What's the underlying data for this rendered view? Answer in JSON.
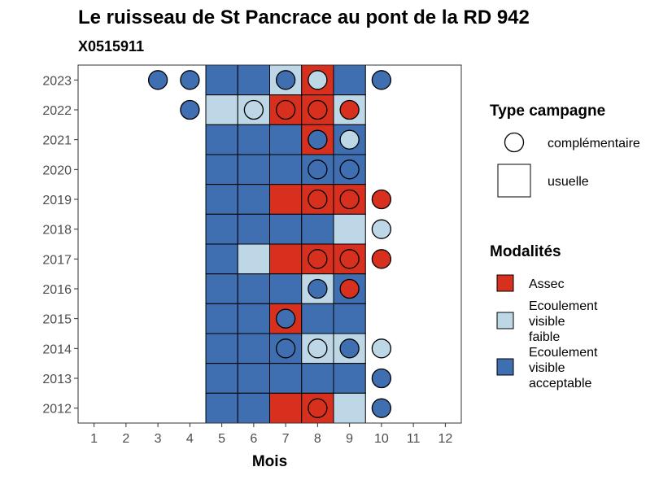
{
  "chart_data": {
    "type": "heatmap",
    "title": "Le ruisseau de St Pancrace au pont de la RD 942",
    "subtitle": "X0515911",
    "xlabel": "Mois",
    "ylabel": "",
    "x_ticks": [
      1,
      2,
      3,
      4,
      5,
      6,
      7,
      8,
      9,
      10,
      11,
      12
    ],
    "y_ticks": [
      2012,
      2013,
      2014,
      2015,
      2016,
      2017,
      2018,
      2019,
      2020,
      2021,
      2022,
      2023
    ],
    "xlim": [
      0.5,
      12.5
    ],
    "ylim": [
      2011.5,
      2023.5
    ],
    "legend_placement": "right",
    "colors": {
      "Assec": "#d7301f",
      "Ecoulement visible faible": "#bdd7e7",
      "Ecoulement visible acceptable": "#3f6fb0"
    },
    "legend_type": {
      "title": "Type campagne",
      "items": [
        {
          "label": "complémentaire",
          "shape": "circle"
        },
        {
          "label": "usuelle",
          "shape": "square"
        }
      ]
    },
    "legend_modalites": {
      "title": "Modalités",
      "items": [
        {
          "key": "Assec",
          "lines": [
            "Assec"
          ]
        },
        {
          "key": "Ecoulement visible faible",
          "lines": [
            "Ecoulement",
            "visible",
            "faible"
          ]
        },
        {
          "key": "Ecoulement visible acceptable",
          "lines": [
            "Ecoulement",
            "visible",
            "acceptable"
          ]
        }
      ]
    },
    "usuelle": [
      {
        "year": 2023,
        "month": 5,
        "modalite": "Ecoulement visible acceptable"
      },
      {
        "year": 2023,
        "month": 6,
        "modalite": "Ecoulement visible acceptable"
      },
      {
        "year": 2023,
        "month": 7,
        "modalite": "Ecoulement visible faible"
      },
      {
        "year": 2023,
        "month": 8,
        "modalite": "Assec"
      },
      {
        "year": 2023,
        "month": 9,
        "modalite": "Ecoulement visible acceptable"
      },
      {
        "year": 2022,
        "month": 5,
        "modalite": "Ecoulement visible faible"
      },
      {
        "year": 2022,
        "month": 6,
        "modalite": "Ecoulement visible faible"
      },
      {
        "year": 2022,
        "month": 7,
        "modalite": "Assec"
      },
      {
        "year": 2022,
        "month": 8,
        "modalite": "Assec"
      },
      {
        "year": 2022,
        "month": 9,
        "modalite": "Ecoulement visible faible"
      },
      {
        "year": 2021,
        "month": 5,
        "modalite": "Ecoulement visible acceptable"
      },
      {
        "year": 2021,
        "month": 6,
        "modalite": "Ecoulement visible acceptable"
      },
      {
        "year": 2021,
        "month": 7,
        "modalite": "Ecoulement visible acceptable"
      },
      {
        "year": 2021,
        "month": 8,
        "modalite": "Assec"
      },
      {
        "year": 2021,
        "month": 9,
        "modalite": "Ecoulement visible acceptable"
      },
      {
        "year": 2020,
        "month": 5,
        "modalite": "Ecoulement visible acceptable"
      },
      {
        "year": 2020,
        "month": 6,
        "modalite": "Ecoulement visible acceptable"
      },
      {
        "year": 2020,
        "month": 7,
        "modalite": "Ecoulement visible acceptable"
      },
      {
        "year": 2020,
        "month": 8,
        "modalite": "Ecoulement visible acceptable"
      },
      {
        "year": 2020,
        "month": 9,
        "modalite": "Ecoulement visible acceptable"
      },
      {
        "year": 2019,
        "month": 5,
        "modalite": "Ecoulement visible acceptable"
      },
      {
        "year": 2019,
        "month": 6,
        "modalite": "Ecoulement visible acceptable"
      },
      {
        "year": 2019,
        "month": 7,
        "modalite": "Assec"
      },
      {
        "year": 2019,
        "month": 8,
        "modalite": "Assec"
      },
      {
        "year": 2019,
        "month": 9,
        "modalite": "Assec"
      },
      {
        "year": 2018,
        "month": 5,
        "modalite": "Ecoulement visible acceptable"
      },
      {
        "year": 2018,
        "month": 6,
        "modalite": "Ecoulement visible acceptable"
      },
      {
        "year": 2018,
        "month": 7,
        "modalite": "Ecoulement visible acceptable"
      },
      {
        "year": 2018,
        "month": 8,
        "modalite": "Ecoulement visible acceptable"
      },
      {
        "year": 2018,
        "month": 9,
        "modalite": "Ecoulement visible faible"
      },
      {
        "year": 2017,
        "month": 5,
        "modalite": "Ecoulement visible acceptable"
      },
      {
        "year": 2017,
        "month": 6,
        "modalite": "Ecoulement visible faible"
      },
      {
        "year": 2017,
        "month": 7,
        "modalite": "Assec"
      },
      {
        "year": 2017,
        "month": 8,
        "modalite": "Assec"
      },
      {
        "year": 2017,
        "month": 9,
        "modalite": "Assec"
      },
      {
        "year": 2016,
        "month": 5,
        "modalite": "Ecoulement visible acceptable"
      },
      {
        "year": 2016,
        "month": 6,
        "modalite": "Ecoulement visible acceptable"
      },
      {
        "year": 2016,
        "month": 7,
        "modalite": "Ecoulement visible acceptable"
      },
      {
        "year": 2016,
        "month": 8,
        "modalite": "Ecoulement visible faible"
      },
      {
        "year": 2016,
        "month": 9,
        "modalite": "Ecoulement visible acceptable"
      },
      {
        "year": 2015,
        "month": 5,
        "modalite": "Ecoulement visible acceptable"
      },
      {
        "year": 2015,
        "month": 6,
        "modalite": "Ecoulement visible acceptable"
      },
      {
        "year": 2015,
        "month": 7,
        "modalite": "Assec"
      },
      {
        "year": 2015,
        "month": 8,
        "modalite": "Ecoulement visible acceptable"
      },
      {
        "year": 2015,
        "month": 9,
        "modalite": "Ecoulement visible acceptable"
      },
      {
        "year": 2014,
        "month": 5,
        "modalite": "Ecoulement visible acceptable"
      },
      {
        "year": 2014,
        "month": 6,
        "modalite": "Ecoulement visible acceptable"
      },
      {
        "year": 2014,
        "month": 7,
        "modalite": "Ecoulement visible acceptable"
      },
      {
        "year": 2014,
        "month": 8,
        "modalite": "Ecoulement visible faible"
      },
      {
        "year": 2014,
        "month": 9,
        "modalite": "Ecoulement visible faible"
      },
      {
        "year": 2013,
        "month": 5,
        "modalite": "Ecoulement visible acceptable"
      },
      {
        "year": 2013,
        "month": 6,
        "modalite": "Ecoulement visible acceptable"
      },
      {
        "year": 2013,
        "month": 7,
        "modalite": "Ecoulement visible acceptable"
      },
      {
        "year": 2013,
        "month": 8,
        "modalite": "Ecoulement visible acceptable"
      },
      {
        "year": 2013,
        "month": 9,
        "modalite": "Ecoulement visible acceptable"
      },
      {
        "year": 2012,
        "month": 5,
        "modalite": "Ecoulement visible acceptable"
      },
      {
        "year": 2012,
        "month": 6,
        "modalite": "Ecoulement visible acceptable"
      },
      {
        "year": 2012,
        "month": 7,
        "modalite": "Assec"
      },
      {
        "year": 2012,
        "month": 8,
        "modalite": "Assec"
      },
      {
        "year": 2012,
        "month": 9,
        "modalite": "Ecoulement visible faible"
      }
    ],
    "complementaire": [
      {
        "year": 2023,
        "month": 3,
        "modalite": "Ecoulement visible acceptable"
      },
      {
        "year": 2023,
        "month": 4,
        "modalite": "Ecoulement visible acceptable"
      },
      {
        "year": 2023,
        "month": 7,
        "modalite": "Ecoulement visible acceptable"
      },
      {
        "year": 2023,
        "month": 8,
        "modalite": "Ecoulement visible faible"
      },
      {
        "year": 2023,
        "month": 10,
        "modalite": "Ecoulement visible acceptable"
      },
      {
        "year": 2022,
        "month": 4,
        "modalite": "Ecoulement visible acceptable"
      },
      {
        "year": 2022,
        "month": 6,
        "modalite": "Ecoulement visible faible"
      },
      {
        "year": 2022,
        "month": 7,
        "modalite": "Assec"
      },
      {
        "year": 2022,
        "month": 8,
        "modalite": "Assec"
      },
      {
        "year": 2022,
        "month": 9,
        "modalite": "Assec"
      },
      {
        "year": 2021,
        "month": 8,
        "modalite": "Ecoulement visible acceptable"
      },
      {
        "year": 2021,
        "month": 9,
        "modalite": "Ecoulement visible faible"
      },
      {
        "year": 2020,
        "month": 8,
        "modalite": "Ecoulement visible acceptable"
      },
      {
        "year": 2020,
        "month": 9,
        "modalite": "Ecoulement visible acceptable"
      },
      {
        "year": 2019,
        "month": 8,
        "modalite": "Assec"
      },
      {
        "year": 2019,
        "month": 9,
        "modalite": "Assec"
      },
      {
        "year": 2019,
        "month": 10,
        "modalite": "Assec"
      },
      {
        "year": 2018,
        "month": 10,
        "modalite": "Ecoulement visible faible"
      },
      {
        "year": 2017,
        "month": 8,
        "modalite": "Assec"
      },
      {
        "year": 2017,
        "month": 9,
        "modalite": "Assec"
      },
      {
        "year": 2017,
        "month": 10,
        "modalite": "Assec"
      },
      {
        "year": 2016,
        "month": 8,
        "modalite": "Ecoulement visible acceptable"
      },
      {
        "year": 2016,
        "month": 9,
        "modalite": "Assec"
      },
      {
        "year": 2015,
        "month": 7,
        "modalite": "Ecoulement visible acceptable"
      },
      {
        "year": 2014,
        "month": 7,
        "modalite": "Ecoulement visible acceptable"
      },
      {
        "year": 2014,
        "month": 8,
        "modalite": "Ecoulement visible faible"
      },
      {
        "year": 2014,
        "month": 9,
        "modalite": "Ecoulement visible acceptable"
      },
      {
        "year": 2014,
        "month": 10,
        "modalite": "Ecoulement visible faible"
      },
      {
        "year": 2013,
        "month": 10,
        "modalite": "Ecoulement visible acceptable"
      },
      {
        "year": 2012,
        "month": 8,
        "modalite": "Assec"
      },
      {
        "year": 2012,
        "month": 10,
        "modalite": "Ecoulement visible acceptable"
      }
    ]
  }
}
